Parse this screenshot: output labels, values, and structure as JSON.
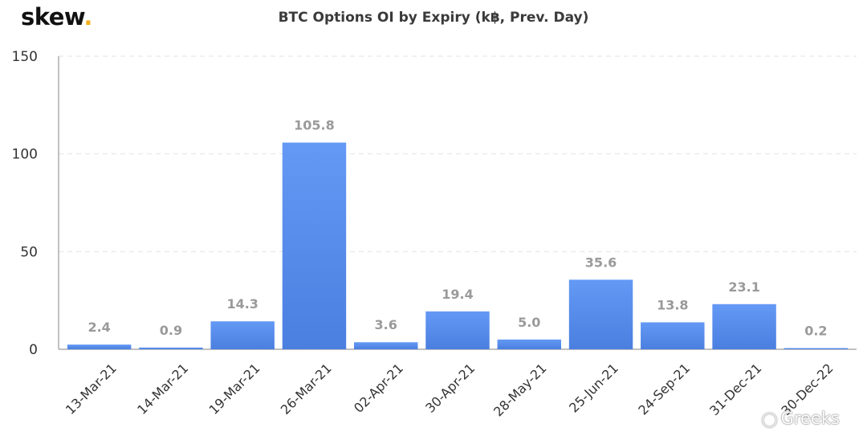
{
  "brand": {
    "name": "skew",
    "dot": ".",
    "accent": "#f2b01e"
  },
  "watermark": {
    "icon": "wechat-icon",
    "text": "Greeks"
  },
  "chart_data": {
    "type": "bar",
    "title": "BTC Options OI by Expiry (k฿, Prev. Day)",
    "xlabel": "",
    "ylabel": "",
    "categories": [
      "13-Mar-21",
      "14-Mar-21",
      "19-Mar-21",
      "26-Mar-21",
      "02-Apr-21",
      "30-Apr-21",
      "28-May-21",
      "25-Jun-21",
      "24-Sep-21",
      "31-Dec-21",
      "30-Dec-22"
    ],
    "values": [
      2.4,
      0.9,
      14.3,
      105.8,
      3.6,
      19.4,
      5.0,
      35.6,
      13.8,
      23.1,
      0.2
    ],
    "data_labels": [
      "2.4",
      "0.9",
      "14.3",
      "105.8",
      "3.6",
      "19.4",
      "5.0",
      "35.6",
      "13.8",
      "23.1",
      "0.2"
    ],
    "ylim": [
      0,
      150
    ],
    "yticks": [
      0,
      50,
      100,
      150
    ],
    "grid": true,
    "bar_color": "#5b8ff0",
    "label_color": "#9a9a9a"
  }
}
